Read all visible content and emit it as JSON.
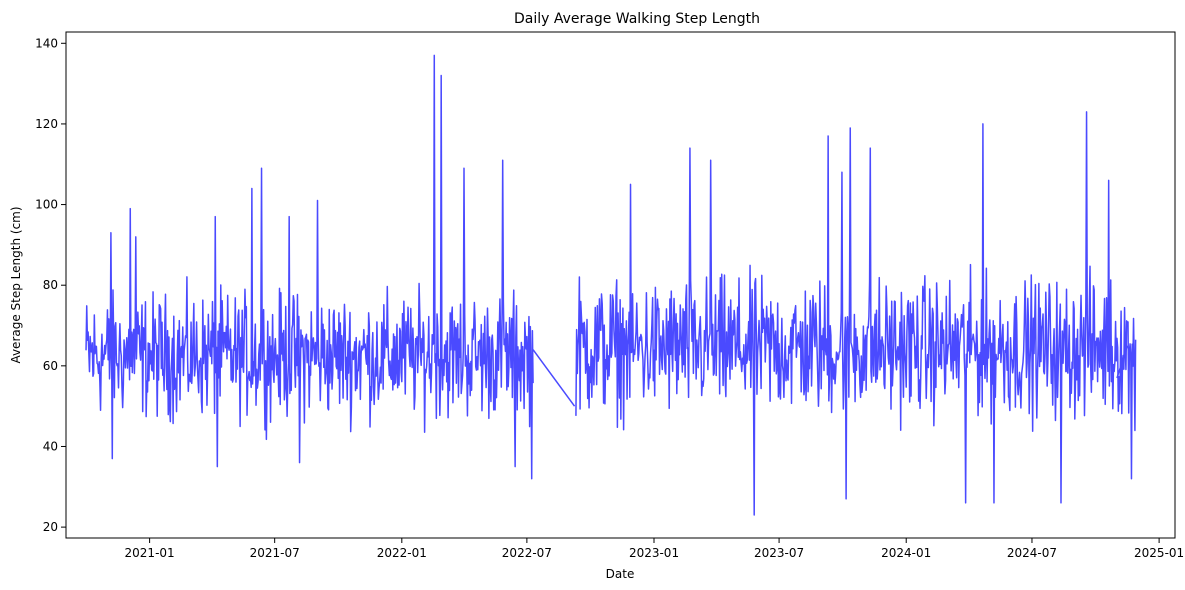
{
  "chart_data": {
    "type": "line",
    "title": "Daily Average Walking Step Length",
    "xlabel": "Date",
    "ylabel": "Average Step Length (cm)",
    "xlim": [
      "2020-09-02",
      "2025-01-24"
    ],
    "ylim": [
      17.3,
      142.8
    ],
    "x_ticks": [
      "2021-01",
      "2021-07",
      "2022-01",
      "2022-07",
      "2023-01",
      "2023-07",
      "2024-01",
      "2024-07",
      "2025-01"
    ],
    "y_ticks": [
      20,
      40,
      60,
      80,
      100,
      120,
      140
    ],
    "grid": false,
    "series": [
      {
        "color": "#4a4aff",
        "segments": [
          {
            "start": "2020-10-01",
            "end": "2022-07-10",
            "typical_low": 45,
            "typical_high": 80
          },
          {
            "start": "2022-09-10",
            "end": "2024-11-28",
            "typical_low": 45,
            "typical_high": 84
          }
        ],
        "peaks": [
          {
            "x": "2020-11-06",
            "y": 93
          },
          {
            "x": "2020-12-04",
            "y": 99
          },
          {
            "x": "2020-12-12",
            "y": 92
          },
          {
            "x": "2021-04-06",
            "y": 97
          },
          {
            "x": "2021-05-29",
            "y": 104
          },
          {
            "x": "2021-06-12",
            "y": 109
          },
          {
            "x": "2021-07-22",
            "y": 97
          },
          {
            "x": "2021-09-01",
            "y": 101
          },
          {
            "x": "2022-02-17",
            "y": 137
          },
          {
            "x": "2022-02-27",
            "y": 132
          },
          {
            "x": "2022-04-01",
            "y": 109
          },
          {
            "x": "2022-05-27",
            "y": 111
          },
          {
            "x": "2022-11-28",
            "y": 105
          },
          {
            "x": "2023-02-22",
            "y": 114
          },
          {
            "x": "2023-03-24",
            "y": 111
          },
          {
            "x": "2023-09-10",
            "y": 117
          },
          {
            "x": "2023-09-30",
            "y": 108
          },
          {
            "x": "2023-10-12",
            "y": 119
          },
          {
            "x": "2023-11-10",
            "y": 114
          },
          {
            "x": "2024-04-21",
            "y": 120
          },
          {
            "x": "2024-09-18",
            "y": 123
          },
          {
            "x": "2024-10-20",
            "y": 106
          }
        ],
        "troughs": [
          {
            "x": "2020-11-08",
            "y": 37
          },
          {
            "x": "2021-04-09",
            "y": 35
          },
          {
            "x": "2021-08-06",
            "y": 36
          },
          {
            "x": "2022-06-14",
            "y": 35
          },
          {
            "x": "2022-07-08",
            "y": 32
          },
          {
            "x": "2023-05-26",
            "y": 23
          },
          {
            "x": "2023-10-06",
            "y": 27
          },
          {
            "x": "2024-03-27",
            "y": 26
          },
          {
            "x": "2024-05-07",
            "y": 26
          },
          {
            "x": "2024-08-12",
            "y": 26
          },
          {
            "x": "2024-11-22",
            "y": 32
          }
        ],
        "connectors": [
          [
            {
              "x": "2022-07-10",
              "y": 64
            },
            {
              "x": "2022-09-08",
              "y": 50
            }
          ],
          [
            {
              "x": "2024-11-01",
              "y": 57
            },
            {
              "x": "2024-11-16",
              "y": 65
            }
          ]
        ]
      }
    ]
  }
}
